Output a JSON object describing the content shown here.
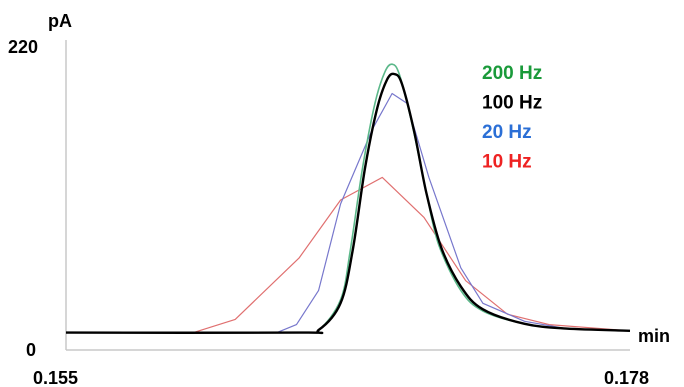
{
  "chart_data": {
    "type": "line",
    "title": "",
    "ylabel": "pA",
    "xlabel": "min",
    "y_ticks": [
      "220",
      "0"
    ],
    "x_ticks": [
      "0.155",
      "0.178"
    ],
    "ylim": [
      0,
      220
    ],
    "xlim": [
      0.155,
      0.178
    ],
    "grid": false,
    "legend_position": "top-right",
    "series": [
      {
        "name": "200 Hz",
        "color": "#5cb88a",
        "legend_color": "#1a9a3a",
        "stroke_width": 1.6,
        "points": [
          [
            0.155,
            7.3
          ],
          [
            0.1645,
            7.3
          ],
          [
            0.1653,
            9.3
          ],
          [
            0.1662,
            32.8
          ],
          [
            0.1666,
            72.0
          ],
          [
            0.1671,
            135.6
          ],
          [
            0.1676,
            185.0
          ],
          [
            0.168,
            209.0
          ],
          [
            0.1683,
            215.2
          ],
          [
            0.1686,
            207.0
          ],
          [
            0.1691,
            169.7
          ],
          [
            0.1697,
            115.0
          ],
          [
            0.1702,
            75.3
          ],
          [
            0.1711,
            40.0
          ],
          [
            0.172,
            24.0
          ],
          [
            0.1737,
            14.1
          ],
          [
            0.1754,
            10.4
          ],
          [
            0.178,
            8.7
          ]
        ]
      },
      {
        "name": "100 Hz",
        "color": "#000000",
        "legend_color": "#000000",
        "stroke_width": 2.4,
        "points": [
          [
            0.155,
            7.3
          ],
          [
            0.1645,
            7.3
          ],
          [
            0.1653,
            9.3
          ],
          [
            0.1662,
            30.2
          ],
          [
            0.1667,
            72.0
          ],
          [
            0.1672,
            135.6
          ],
          [
            0.1677,
            181.7
          ],
          [
            0.1681,
            203.5
          ],
          [
            0.1684,
            207.5
          ],
          [
            0.1687,
            200.0
          ],
          [
            0.1692,
            163.0
          ],
          [
            0.1697,
            115.0
          ],
          [
            0.1703,
            73.3
          ],
          [
            0.1711,
            43.1
          ],
          [
            0.172,
            25.3
          ],
          [
            0.1737,
            14.1
          ],
          [
            0.1754,
            10.4
          ],
          [
            0.178,
            8.7
          ]
        ]
      },
      {
        "name": "20 Hz",
        "color": "#7777cc",
        "legend_color": "#2b6fd6",
        "stroke_width": 1.2,
        "points": [
          [
            0.155,
            7.3
          ],
          [
            0.1636,
            7.3
          ],
          [
            0.1644,
            13.5
          ],
          [
            0.1653,
            40.0
          ],
          [
            0.1662,
            107.0
          ],
          [
            0.1675,
            165.0
          ],
          [
            0.1683,
            192.5
          ],
          [
            0.1689,
            185.0
          ],
          [
            0.1698,
            127.5
          ],
          [
            0.1711,
            57.5
          ],
          [
            0.172,
            30.0
          ],
          [
            0.1737,
            16.0
          ],
          [
            0.1754,
            10.4
          ],
          [
            0.178,
            8.7
          ]
        ]
      },
      {
        "name": "10 Hz",
        "color": "#e07070",
        "legend_color": "#ee2222",
        "stroke_width": 1.2,
        "points": [
          [
            0.155,
            7.3
          ],
          [
            0.1602,
            7.3
          ],
          [
            0.1619,
            17.5
          ],
          [
            0.1645,
            65.0
          ],
          [
            0.1662,
            110.0
          ],
          [
            0.1679,
            127.5
          ],
          [
            0.1696,
            96.5
          ],
          [
            0.1713,
            47.5
          ],
          [
            0.173,
            21.5
          ],
          [
            0.1747,
            13.5
          ],
          [
            0.178,
            8.7
          ]
        ]
      }
    ]
  }
}
